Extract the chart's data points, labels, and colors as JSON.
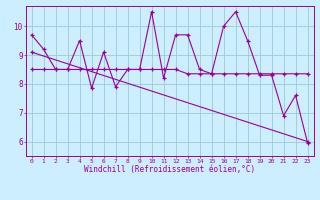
{
  "title": "",
  "xlabel": "Windchill (Refroidissement éolien,°C)",
  "background_color": "#cceeff",
  "line_color": "#990099",
  "grid_color": "#99cccc",
  "xlim": [
    -0.5,
    23.5
  ],
  "ylim": [
    5.5,
    10.7
  ],
  "yticks": [
    6,
    7,
    8,
    9,
    10
  ],
  "xticks": [
    0,
    1,
    2,
    3,
    4,
    5,
    6,
    7,
    8,
    9,
    10,
    11,
    12,
    13,
    14,
    15,
    16,
    17,
    18,
    19,
    20,
    21,
    22,
    23
  ],
  "series": [
    {
      "x": [
        0,
        1,
        2,
        3,
        4,
        5,
        6,
        7,
        8,
        9,
        10,
        11,
        12,
        13,
        14,
        15,
        16,
        17,
        18,
        19,
        20,
        21,
        22,
        23
      ],
      "y": [
        9.7,
        9.2,
        8.5,
        8.5,
        9.5,
        7.85,
        9.1,
        7.9,
        8.5,
        8.5,
        10.5,
        8.2,
        9.7,
        9.7,
        8.5,
        8.35,
        10.0,
        10.5,
        9.5,
        8.3,
        8.3,
        6.9,
        7.6,
        5.95
      ]
    },
    {
      "x": [
        0,
        1,
        2,
        3,
        4,
        5,
        6,
        7,
        8,
        9,
        10,
        11,
        12,
        13,
        14,
        15,
        16,
        17,
        18,
        19,
        20,
        21,
        22,
        23
      ],
      "y": [
        8.5,
        8.5,
        8.5,
        8.5,
        8.5,
        8.5,
        8.5,
        8.5,
        8.5,
        8.5,
        8.5,
        8.5,
        8.5,
        8.35,
        8.35,
        8.35,
        8.35,
        8.35,
        8.35,
        8.35,
        8.35,
        8.35,
        8.35,
        8.35
      ]
    },
    {
      "x": [
        0,
        23
      ],
      "y": [
        9.1,
        6.0
      ]
    }
  ]
}
